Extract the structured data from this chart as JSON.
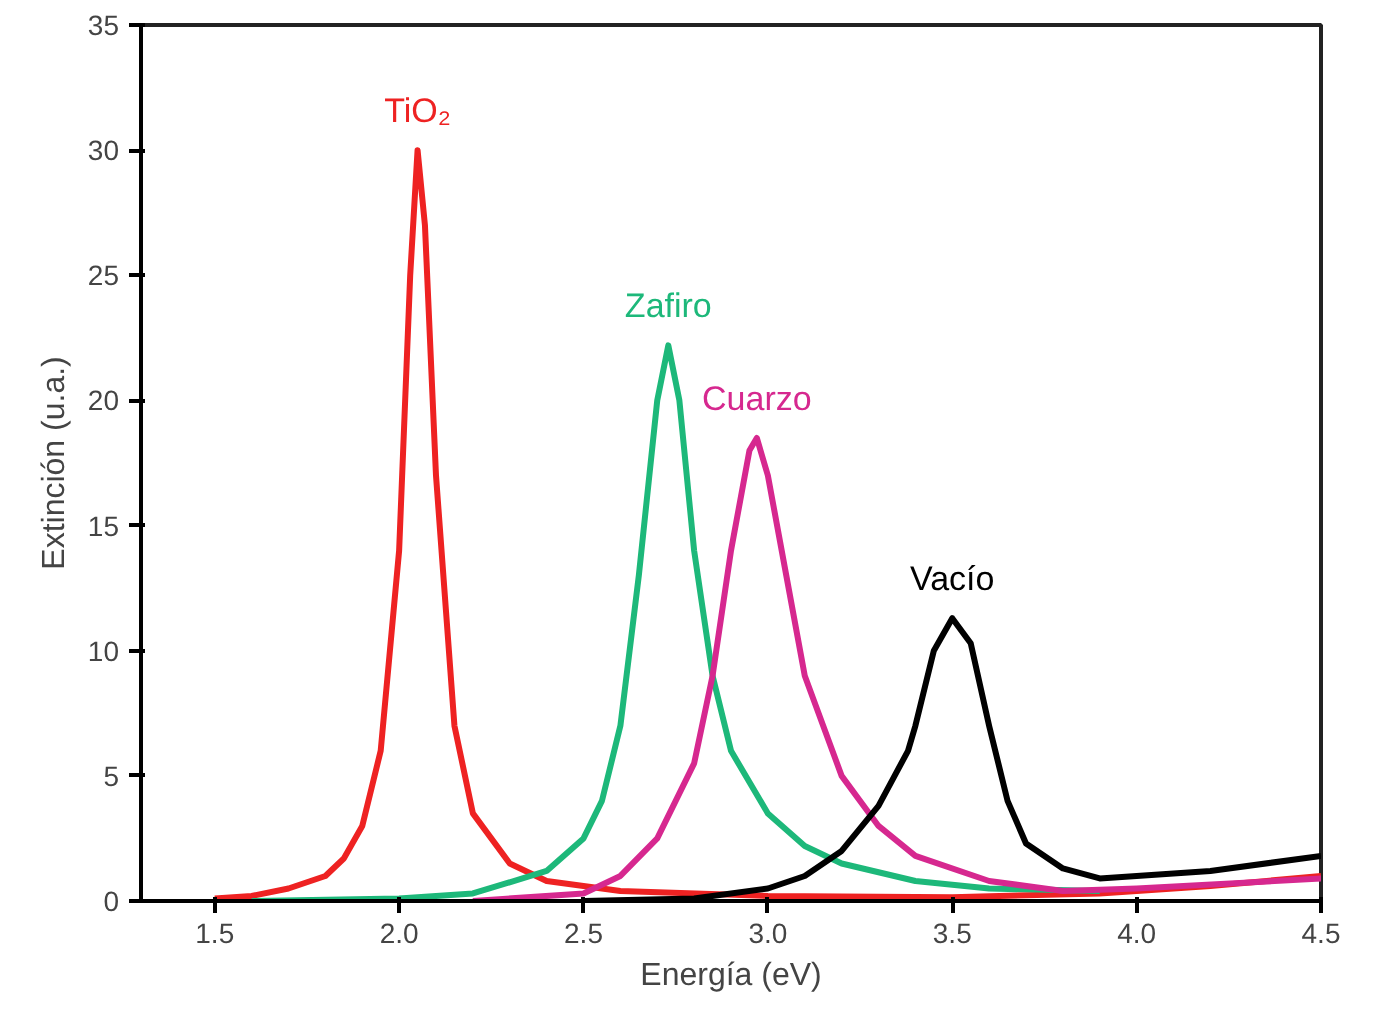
{
  "chart_data": {
    "type": "line",
    "xlabel": "Energía (eV)",
    "ylabel": "Extinción (u.a.)",
    "xlim": [
      1.3,
      4.5
    ],
    "ylim": [
      0,
      35
    ],
    "xticks": [
      {
        "value": 1.5,
        "label": "1.5"
      },
      {
        "value": 2.0,
        "label": "2.0"
      },
      {
        "value": 2.5,
        "label": "2.5"
      },
      {
        "value": 3.0,
        "label": "3.0"
      },
      {
        "value": 3.5,
        "label": "3.5"
      },
      {
        "value": 4.0,
        "label": "4.0"
      },
      {
        "value": 4.5,
        "label": "4.5"
      }
    ],
    "yticks": [
      0,
      5,
      10,
      15,
      20,
      25,
      30,
      35
    ],
    "grid": false,
    "legend": false,
    "marker": "none",
    "line_style": "solid",
    "series": [
      {
        "name": "TiO₂",
        "color": "#ee2222",
        "x": [
          1.5,
          1.6,
          1.7,
          1.8,
          1.85,
          1.9,
          1.95,
          2.0,
          2.03,
          2.05,
          2.07,
          2.1,
          2.15,
          2.2,
          2.3,
          2.4,
          2.6,
          3.0,
          3.5,
          3.9,
          4.2,
          4.5
        ],
        "values": [
          0.1,
          0.2,
          0.5,
          1.0,
          1.7,
          3,
          6,
          14,
          25,
          30,
          27,
          17,
          7,
          3.5,
          1.5,
          0.8,
          0.4,
          0.2,
          0.15,
          0.3,
          0.6,
          1.0
        ]
      },
      {
        "name": "Zafiro",
        "color": "#1db87a",
        "x": [
          1.6,
          2.0,
          2.2,
          2.4,
          2.5,
          2.55,
          2.6,
          2.65,
          2.7,
          2.73,
          2.76,
          2.8,
          2.85,
          2.9,
          3.0,
          3.1,
          3.2,
          3.4,
          3.6,
          3.9
        ],
        "values": [
          0,
          0.1,
          0.3,
          1.2,
          2.5,
          4,
          7,
          13,
          20,
          22.2,
          20,
          14,
          9,
          6,
          3.5,
          2.2,
          1.5,
          0.8,
          0.5,
          0.4
        ]
      },
      {
        "name": "Cuarzo",
        "color": "#d6288f",
        "x": [
          2.2,
          2.5,
          2.6,
          2.7,
          2.8,
          2.85,
          2.9,
          2.95,
          2.97,
          3.0,
          3.05,
          3.1,
          3.2,
          3.3,
          3.4,
          3.6,
          3.8,
          4.0,
          4.5
        ],
        "values": [
          0,
          0.3,
          1,
          2.5,
          5.5,
          9,
          14,
          18,
          18.5,
          17,
          13,
          9,
          5,
          3,
          1.8,
          0.8,
          0.4,
          0.5,
          0.9
        ]
      },
      {
        "name": "Vacío",
        "color": "#000000",
        "x": [
          2.5,
          2.8,
          3.0,
          3.1,
          3.2,
          3.3,
          3.38,
          3.4,
          3.45,
          3.5,
          3.55,
          3.6,
          3.65,
          3.7,
          3.8,
          3.9,
          4.2,
          4.5
        ],
        "values": [
          0,
          0.1,
          0.5,
          1.0,
          2,
          3.8,
          6,
          7,
          10,
          11.3,
          10.3,
          7,
          4,
          2.3,
          1.3,
          0.9,
          1.2,
          1.8
        ]
      }
    ]
  }
}
